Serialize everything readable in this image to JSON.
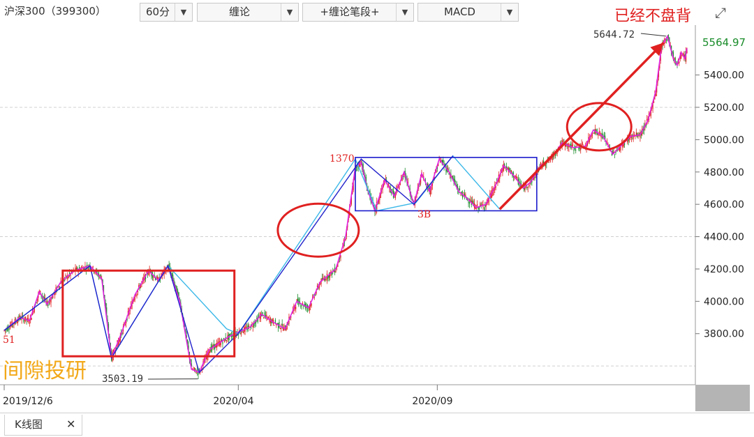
{
  "toolbar": {
    "symbol": "沪深300（399300）",
    "period": "60分",
    "indicator1": "缠论",
    "indicator2": "+缠论笔段+",
    "indicator3": "MACD",
    "dropdown_icon": "▼",
    "annotation": "已经不盘背",
    "expand_icon": "⤢"
  },
  "tabs": {
    "active_label": "K线图",
    "close_icon": "✕"
  },
  "chart_data": {
    "type": "candlestick",
    "price_labels": {
      "current": "5564.97",
      "high": "5644.72",
      "low": "3503.19",
      "left_marker": "51",
      "box_top": "1370",
      "point_3b": "3B"
    },
    "watermark": "间隙投研",
    "yticks": [
      "5400.00",
      "5200.00",
      "5000.00",
      "4800.00",
      "4600.00",
      "4400.00",
      "4200.00",
      "4000.00",
      "3800.00"
    ],
    "ylim": [
      3510,
      5700
    ],
    "xticks": [
      {
        "label": "2019/12/6",
        "index": 0
      },
      {
        "label": "2020/04",
        "index": 240
      },
      {
        "label": "2020/09",
        "index": 444
      }
    ],
    "price_path": [
      [
        0,
        3820
      ],
      [
        16,
        3900
      ],
      [
        26,
        3880
      ],
      [
        36,
        4060
      ],
      [
        44,
        3980
      ],
      [
        58,
        4120
      ],
      [
        72,
        4190
      ],
      [
        88,
        4220
      ],
      [
        100,
        4140
      ],
      [
        110,
        3650
      ],
      [
        120,
        3800
      ],
      [
        134,
        4040
      ],
      [
        148,
        4190
      ],
      [
        158,
        4130
      ],
      [
        168,
        4220
      ],
      [
        180,
        4000
      ],
      [
        192,
        3580
      ],
      [
        200,
        3560
      ],
      [
        210,
        3700
      ],
      [
        220,
        3740
      ],
      [
        230,
        3780
      ],
      [
        240,
        3810
      ],
      [
        252,
        3840
      ],
      [
        264,
        3920
      ],
      [
        276,
        3870
      ],
      [
        288,
        3830
      ],
      [
        300,
        4000
      ],
      [
        312,
        3960
      ],
      [
        324,
        4120
      ],
      [
        340,
        4200
      ],
      [
        350,
        4400
      ],
      [
        360,
        4830
      ],
      [
        366,
        4860
      ],
      [
        372,
        4700
      ],
      [
        380,
        4560
      ],
      [
        390,
        4750
      ],
      [
        400,
        4650
      ],
      [
        410,
        4800
      ],
      [
        420,
        4600
      ],
      [
        428,
        4790
      ],
      [
        436,
        4680
      ],
      [
        446,
        4880
      ],
      [
        456,
        4800
      ],
      [
        466,
        4680
      ],
      [
        474,
        4640
      ],
      [
        484,
        4580
      ],
      [
        494,
        4600
      ],
      [
        504,
        4720
      ],
      [
        512,
        4840
      ],
      [
        522,
        4780
      ],
      [
        532,
        4700
      ],
      [
        540,
        4740
      ],
      [
        550,
        4840
      ],
      [
        560,
        4880
      ],
      [
        572,
        4980
      ],
      [
        584,
        4950
      ],
      [
        596,
        4960
      ],
      [
        604,
        5060
      ],
      [
        614,
        5020
      ],
      [
        624,
        4910
      ],
      [
        632,
        4960
      ],
      [
        642,
        5020
      ],
      [
        652,
        5030
      ],
      [
        660,
        5120
      ],
      [
        668,
        5300
      ],
      [
        674,
        5580
      ],
      [
        680,
        5640
      ],
      [
        686,
        5500
      ],
      [
        690,
        5460
      ],
      [
        694,
        5540
      ],
      [
        698,
        5500
      ],
      [
        700,
        5565
      ]
    ],
    "bi_path": [
      [
        0,
        3820
      ],
      [
        88,
        4220
      ],
      [
        110,
        3650
      ],
      [
        168,
        4220
      ],
      [
        200,
        3560
      ],
      [
        240,
        3800
      ],
      [
        366,
        4880
      ],
      [
        420,
        4600
      ],
      [
        460,
        4900
      ]
    ],
    "duan_path": [
      [
        0,
        3820
      ],
      [
        88,
        4220
      ],
      [
        110,
        3650
      ],
      [
        168,
        4220
      ],
      [
        228,
        3830
      ],
      [
        240,
        3800
      ],
      [
        360,
        4880
      ],
      [
        382,
        4560
      ],
      [
        422,
        4610
      ],
      [
        460,
        4900
      ],
      [
        508,
        4570
      ]
    ],
    "boxes": [
      {
        "i0": 60,
        "i1": 236,
        "p0": 3660,
        "p1": 4190,
        "color": "#e02020"
      },
      {
        "i0": 360,
        "i1": 546,
        "p0": 4560,
        "p1": 4890,
        "color": "#1a1acc"
      }
    ],
    "circles": [
      {
        "i": 322,
        "p": 4440,
        "rx": 58,
        "ry": 38
      },
      {
        "i": 610,
        "p": 5080,
        "rx": 46,
        "ry": 34
      }
    ],
    "arrow": {
      "i0": 508,
      "p0": 4570,
      "i1": 676,
      "p1": 5600
    }
  }
}
